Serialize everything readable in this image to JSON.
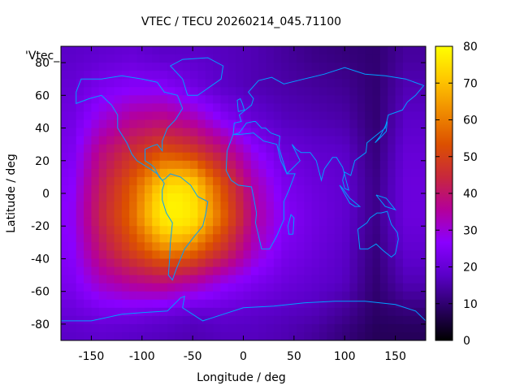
{
  "chart_data": {
    "type": "heatmap",
    "title": "VTEC / TECU 20260214_045.71100",
    "xlabel": "Longitude / deg",
    "ylabel": "Latitude / deg",
    "xlim": [
      -180,
      180
    ],
    "ylim": [
      -90,
      90
    ],
    "xticks": [
      -150,
      -100,
      -50,
      0,
      50,
      100,
      150
    ],
    "yticks": [
      -80,
      -60,
      -40,
      -20,
      0,
      20,
      40,
      60,
      80
    ],
    "colorbar": {
      "min": 0,
      "max": 80,
      "ticks": [
        0,
        10,
        20,
        30,
        40,
        50,
        60,
        70,
        80
      ]
    },
    "colormap": [
      "#000000",
      "#2a0064",
      "#5a00c8",
      "#8a00ff",
      "#b4009a",
      "#c8283c",
      "#dc5000",
      "#f08c00",
      "#ffc800",
      "#ffff00"
    ],
    "coastline_color": "#00a0ff",
    "legend_entry": "'Vtec_",
    "grid": false,
    "features": [
      {
        "type": "peak",
        "lon": -68,
        "lat": -8,
        "value": 78
      },
      {
        "type": "anomaly_band",
        "lon_range": [
          108,
          135
        ],
        "value": 12
      }
    ],
    "data_rows": {
      "lats": [
        85,
        65,
        45,
        25,
        5,
        -15,
        -35,
        -55,
        -75,
        -85
      ],
      "lons": [
        -170,
        -140,
        -110,
        -80,
        -50,
        -20,
        10,
        40,
        70,
        100,
        130,
        160
      ],
      "values": [
        [
          18,
          19,
          20,
          18,
          18,
          17,
          16,
          14,
          12,
          11,
          10,
          14
        ],
        [
          20,
          24,
          26,
          26,
          22,
          18,
          16,
          15,
          14,
          13,
          10,
          16
        ],
        [
          22,
          30,
          36,
          38,
          34,
          26,
          20,
          17,
          16,
          15,
          10,
          18
        ],
        [
          24,
          38,
          46,
          52,
          48,
          40,
          28,
          21,
          19,
          18,
          11,
          20
        ],
        [
          26,
          42,
          54,
          66,
          70,
          52,
          34,
          24,
          21,
          19,
          12,
          21
        ],
        [
          27,
          44,
          56,
          72,
          74,
          56,
          36,
          26,
          22,
          19,
          12,
          21
        ],
        [
          26,
          40,
          50,
          58,
          56,
          46,
          32,
          24,
          21,
          18,
          11,
          19
        ],
        [
          24,
          32,
          36,
          38,
          34,
          28,
          24,
          21,
          19,
          17,
          10,
          16
        ],
        [
          20,
          22,
          22,
          20,
          18,
          19,
          18,
          17,
          16,
          13,
          9,
          10
        ],
        [
          18,
          19,
          18,
          17,
          16,
          17,
          17,
          16,
          14,
          11,
          8,
          8
        ]
      ]
    }
  }
}
